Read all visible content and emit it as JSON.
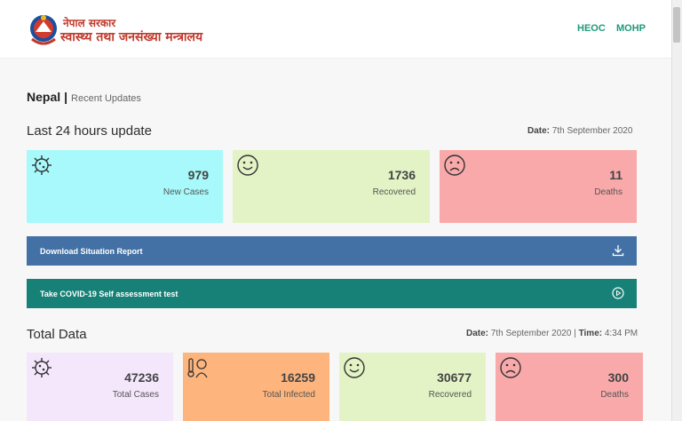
{
  "header": {
    "brand_line1": "नेपाल सरकार",
    "brand_line2": "स्वास्थ्य तथा जनसंख्या मन्त्रालय",
    "nav": [
      {
        "label": "HEOC"
      },
      {
        "label": "MOHP"
      }
    ]
  },
  "breadcrumb": {
    "country": "Nepal",
    "separator": "|",
    "page": "Recent Updates"
  },
  "last24": {
    "title": "Last 24 hours update",
    "date_label": "Date:",
    "date_value": "7th September 2020",
    "cards": [
      {
        "value": "979",
        "label": "New Cases",
        "color": "#a8f9fb",
        "icon": "virus-icon"
      },
      {
        "value": "1736",
        "label": "Recovered",
        "color": "#e3f3c5",
        "icon": "smile-icon"
      },
      {
        "value": "11",
        "label": "Deaths",
        "color": "#f9a9a9",
        "icon": "sad-icon"
      }
    ]
  },
  "actions": {
    "download_label": "Download Situation Report",
    "download_color": "#4471a5",
    "assessment_label": "Take COVID-19 Self assessment test",
    "assessment_color": "#178178"
  },
  "total": {
    "title": "Total Data",
    "date_label": "Date:",
    "date_value": "7th September 2020",
    "separator": "|",
    "time_label": "Time:",
    "time_value": "4:34 PM",
    "cards": [
      {
        "value": "47236",
        "label": "Total Cases",
        "color": "#f4e6fb",
        "icon": "virus-icon"
      },
      {
        "value": "16259",
        "label": "Total Infected",
        "color": "#fdb47d",
        "icon": "thermometer-icon"
      },
      {
        "value": "30677",
        "label": "Recovered",
        "color": "#e3f3c5",
        "icon": "smile-icon"
      },
      {
        "value": "300",
        "label": "Deaths",
        "color": "#f9a9a9",
        "icon": "sad-icon"
      }
    ]
  }
}
